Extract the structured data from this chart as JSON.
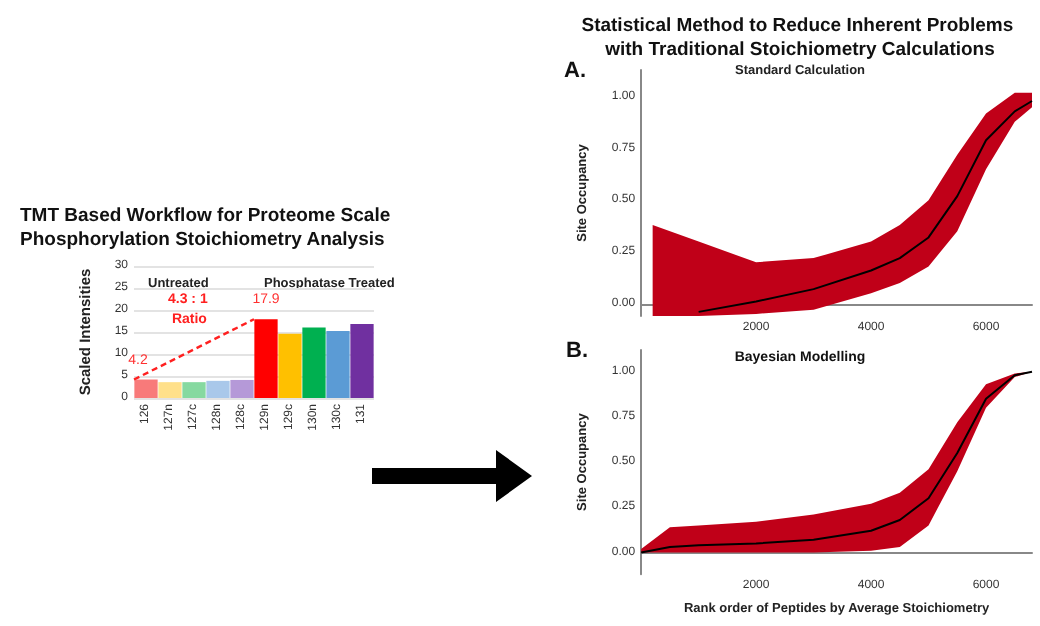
{
  "chart_data": [
    {
      "type": "bar",
      "title": "TMT Based Workflow for Proteome Scale Phosphorylation Stoichiometry Analysis",
      "ylabel": "Scaled Intensities",
      "categories": [
        "126",
        "127n",
        "127c",
        "128n",
        "128c",
        "129n",
        "129c",
        "130n",
        "130c",
        "131"
      ],
      "values": [
        4.2,
        3.6,
        3.6,
        3.9,
        4.1,
        17.9,
        14.6,
        16.0,
        15.2,
        16.8
      ],
      "colors": [
        "#f87a7a",
        "#ffe08a",
        "#86d9a0",
        "#a9c8ea",
        "#b599d8",
        "#ff0000",
        "#ffc000",
        "#00b050",
        "#5b9bd5",
        "#7030a0"
      ],
      "value_labels": [
        "4.2",
        null,
        null,
        null,
        null,
        "17.9",
        null,
        null,
        null,
        null
      ],
      "ylim": [
        0,
        30
      ],
      "yticks": [
        0,
        5,
        10,
        15,
        20,
        25,
        30
      ],
      "grid": "y",
      "annotations": [
        "Untreated",
        "Phosphatase Treated",
        "4.3 : 1 Ratio"
      ]
    },
    {
      "type": "line",
      "title": "Statistical Method to Reduce Inherent Problems with Traditional Stoichiometry Calculations",
      "subtitle": "Standard Calculation",
      "ylabel": "Site Occupancy",
      "annotations": [
        "A."
      ],
      "xlim": [
        0,
        6800
      ],
      "xticks": [
        2000,
        4000,
        6000
      ],
      "ylim": [
        -0.06,
        1.13
      ],
      "yticks": [
        {
          "value": 0,
          "label": "0.00"
        },
        {
          "value": 0.25,
          "label": "0.25"
        },
        {
          "value": 0.5,
          "label": "0.50"
        },
        {
          "value": 0.75,
          "label": "0.75"
        },
        {
          "value": 1,
          "label": "1.00"
        }
      ],
      "grid": false,
      "marker": "none",
      "line_style": "solid",
      "series": [
        {
          "color": "#c00018",
          "x": [
            200,
            1000,
            2000,
            3000,
            4000,
            4500,
            5000,
            5500,
            6000,
            6500,
            6800
          ],
          "values": [
            null,
            null,
            null,
            null,
            null,
            null,
            null,
            null,
            null,
            null,
            null
          ],
          "lower": [
            -0.06,
            -0.06,
            -0.05,
            -0.03,
            0.05,
            0.1,
            0.18,
            0.35,
            0.65,
            0.88,
            0.95
          ],
          "upper": [
            0.38,
            0.3,
            0.2,
            0.22,
            0.3,
            0.38,
            0.5,
            0.72,
            0.92,
            1.02,
            1.02
          ]
        },
        {
          "color": "#000000",
          "x": [
            1000,
            2000,
            3000,
            4000,
            4500,
            5000,
            5500,
            6000,
            6500,
            6800
          ],
          "values": [
            -0.04,
            0.01,
            0.07,
            0.16,
            0.22,
            0.32,
            0.52,
            0.79,
            0.93,
            0.98
          ]
        }
      ]
    },
    {
      "type": "line",
      "title": "Bayesian Modelling",
      "xlabel": "Rank order of Peptides by Average Stoichiometry",
      "ylabel": "Site Occupancy",
      "annotations": [
        "B."
      ],
      "xlim": [
        0,
        6800
      ],
      "xticks": [
        2000,
        4000,
        6000
      ],
      "ylim": [
        -0.12,
        1.12
      ],
      "yticks": [
        {
          "value": 0,
          "label": "0.00"
        },
        {
          "value": 0.25,
          "label": "0.25"
        },
        {
          "value": 0.5,
          "label": "0.50"
        },
        {
          "value": 0.75,
          "label": "0.75"
        },
        {
          "value": 1,
          "label": "1.00"
        }
      ],
      "grid": false,
      "marker": "none",
      "line_style": "solid",
      "series": [
        {
          "color": "#c00018",
          "x": [
            0,
            500,
            1000,
            2000,
            3000,
            4000,
            4500,
            5000,
            5500,
            6000,
            6500,
            6800
          ],
          "values": [
            null,
            null,
            null,
            null,
            null,
            null,
            null,
            null,
            null,
            null,
            null,
            null
          ],
          "lower": [
            0,
            0,
            0,
            0,
            0,
            0.01,
            0.03,
            0.15,
            0.45,
            0.8,
            0.97,
            1.0
          ],
          "upper": [
            0.02,
            0.14,
            0.15,
            0.17,
            0.21,
            0.27,
            0.33,
            0.46,
            0.72,
            0.93,
            0.99,
            1.0
          ]
        },
        {
          "color": "#000000",
          "x": [
            0,
            500,
            1000,
            2000,
            3000,
            4000,
            4500,
            5000,
            5500,
            6000,
            6500,
            6800
          ],
          "values": [
            0,
            0.03,
            0.04,
            0.05,
            0.07,
            0.12,
            0.18,
            0.3,
            0.55,
            0.85,
            0.98,
            1.0
          ]
        }
      ]
    }
  ]
}
